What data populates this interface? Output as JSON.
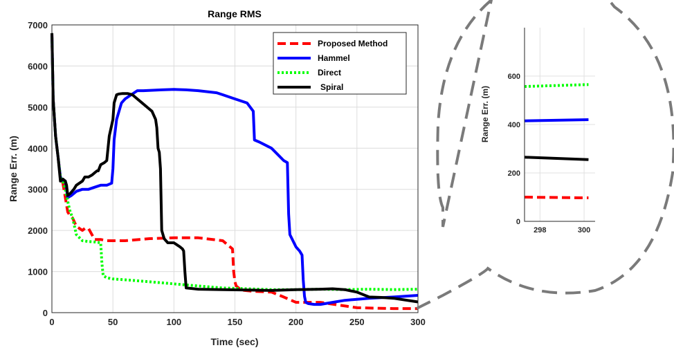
{
  "chart_data": {
    "type": "line",
    "title": "Range RMS",
    "xlabel": "Time (sec)",
    "ylabel": "Range Err. (m)",
    "xlim": [
      0,
      300
    ],
    "ylim": [
      0,
      7000
    ],
    "xticks": [
      "0",
      "50",
      "100",
      "150",
      "200",
      "250",
      "300"
    ],
    "yticks": [
      "0",
      "1000",
      "2000",
      "3000",
      "4000",
      "5000",
      "6000",
      "7000"
    ],
    "grid": true,
    "legend_position": "top-right",
    "series": [
      {
        "name": "Proposed Method",
        "color": "#ff0000",
        "style": "dashed",
        "x": [
          0,
          1,
          3,
          5,
          7,
          9,
          11,
          13,
          15,
          17,
          20,
          25,
          27,
          30,
          35,
          40,
          45,
          60,
          80,
          100,
          120,
          140,
          148,
          149,
          150,
          151,
          155,
          165,
          180,
          190,
          200,
          220,
          250,
          280,
          300
        ],
        "y": [
          6800,
          5200,
          4300,
          3800,
          3300,
          3150,
          2800,
          2450,
          2350,
          2300,
          2100,
          2000,
          2050,
          2050,
          1780,
          1780,
          1750,
          1750,
          1800,
          1820,
          1820,
          1750,
          1550,
          1000,
          750,
          650,
          550,
          520,
          500,
          380,
          250,
          250,
          120,
          100,
          100
        ]
      },
      {
        "name": "Hammel",
        "color": "#0000ff",
        "style": "solid",
        "x": [
          0,
          1,
          3,
          5,
          7,
          9,
          11,
          13,
          16,
          20,
          25,
          30,
          35,
          40,
          45,
          49,
          50,
          51,
          53,
          55,
          57,
          60,
          65,
          70,
          75,
          90,
          100,
          110,
          120,
          135,
          140,
          150,
          160,
          165,
          166,
          170,
          180,
          185,
          190,
          193,
          194,
          195,
          200,
          203,
          205,
          206,
          207,
          208,
          210,
          215,
          220,
          230,
          240,
          260,
          280,
          300
        ],
        "y": [
          6800,
          5200,
          4300,
          3800,
          3300,
          3200,
          3200,
          2800,
          2850,
          2950,
          3000,
          3000,
          3050,
          3100,
          3100,
          3150,
          3500,
          4200,
          4700,
          4900,
          5100,
          5200,
          5300,
          5400,
          5400,
          5420,
          5430,
          5420,
          5400,
          5350,
          5300,
          5200,
          5100,
          4900,
          4200,
          4150,
          4000,
          3850,
          3700,
          3650,
          2400,
          1900,
          1600,
          1500,
          1400,
          800,
          400,
          250,
          220,
          200,
          200,
          250,
          300,
          350,
          380,
          420
        ]
      },
      {
        "name": "Direct",
        "color": "#00ff00",
        "style": "dotted",
        "x": [
          0,
          1,
          3,
          5,
          7,
          9,
          11,
          13,
          15,
          17,
          20,
          25,
          30,
          35,
          40,
          41,
          42,
          45,
          50,
          60,
          80,
          100,
          120,
          140,
          160,
          180,
          200,
          220,
          240,
          260,
          280,
          300
        ],
        "y": [
          6800,
          5200,
          4300,
          3800,
          3300,
          3200,
          3000,
          2700,
          2450,
          2300,
          1900,
          1750,
          1730,
          1720,
          1700,
          1200,
          900,
          850,
          820,
          800,
          750,
          700,
          650,
          600,
          580,
          560,
          560,
          570,
          560,
          570,
          560,
          570
        ]
      },
      {
        "name": "Spiral",
        "color": "#000000",
        "style": "solid",
        "x": [
          0,
          1,
          3,
          5,
          7,
          9,
          11,
          12,
          13,
          15,
          18,
          20,
          25,
          27,
          30,
          33,
          35,
          37,
          38,
          40,
          43,
          45,
          47,
          50,
          51,
          53,
          55,
          58,
          62,
          66,
          70,
          74,
          78,
          82,
          85,
          86,
          87,
          88,
          89,
          90,
          92,
          95,
          100,
          105,
          107,
          108,
          109,
          110,
          120,
          140,
          160,
          180,
          200,
          220,
          230,
          240,
          250,
          260,
          270,
          280,
          300
        ],
        "y": [
          6800,
          5200,
          4300,
          3800,
          3200,
          3250,
          3200,
          3100,
          2850,
          2900,
          3000,
          3100,
          3200,
          3300,
          3300,
          3350,
          3400,
          3450,
          3450,
          3600,
          3650,
          3700,
          4300,
          4700,
          5100,
          5300,
          5320,
          5330,
          5330,
          5300,
          5200,
          5100,
          5000,
          4900,
          4700,
          4500,
          4000,
          3900,
          3500,
          2000,
          1800,
          1700,
          1700,
          1600,
          1550,
          1500,
          1000,
          600,
          570,
          560,
          550,
          540,
          560,
          570,
          580,
          560,
          500,
          380,
          370,
          350,
          260
        ]
      }
    ]
  },
  "inset": {
    "ylabel": "Range Err. (m)",
    "xlim": [
      297.3,
      300.5
    ],
    "ylim": [
      0,
      800
    ],
    "xticks": [
      "298",
      "300"
    ],
    "yticks": [
      "0",
      "200",
      "400",
      "600"
    ],
    "values": {
      "Proposed Method": [
        [
          297.3,
          100
        ],
        [
          300.2,
          97
        ]
      ],
      "Hammel": [
        [
          297.3,
          415
        ],
        [
          300.2,
          420
        ]
      ],
      "Direct": [
        [
          297.3,
          557
        ],
        [
          300.2,
          565
        ]
      ],
      "Spiral": [
        [
          297.3,
          265
        ],
        [
          300.2,
          255
        ]
      ]
    }
  }
}
